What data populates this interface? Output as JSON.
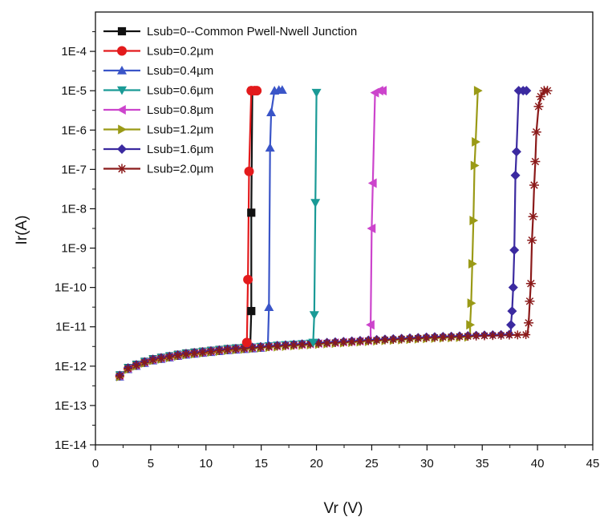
{
  "chart_data": {
    "type": "line",
    "title": "",
    "xlabel": "Vr (V)",
    "ylabel": "Ir(A)",
    "xlim": [
      0,
      45
    ],
    "x_ticks": [
      0,
      5,
      10,
      15,
      20,
      25,
      30,
      35,
      40,
      45
    ],
    "y_scale": "log",
    "ylim_exp": [
      -14,
      -3
    ],
    "y_ticks": [
      {
        "exp": -14,
        "label": "1E-14"
      },
      {
        "exp": -13,
        "label": "1E-13"
      },
      {
        "exp": -12,
        "label": "1E-12"
      },
      {
        "exp": -11,
        "label": "1E-11"
      },
      {
        "exp": -10,
        "label": "1E-10"
      },
      {
        "exp": -9,
        "label": "1E-9"
      },
      {
        "exp": -8,
        "label": "1E-8"
      },
      {
        "exp": -7,
        "label": "1E-7"
      },
      {
        "exp": -6,
        "label": "1E-6"
      },
      {
        "exp": -5,
        "label": "1E-5"
      },
      {
        "exp": -4,
        "label": "1E-4"
      }
    ],
    "legend_position": "top-left",
    "common_leakage_curve": [
      [
        2,
        -12.3
      ],
      [
        3,
        -12.05
      ],
      [
        5,
        -11.85
      ],
      [
        8,
        -11.7
      ],
      [
        12,
        -11.58
      ],
      [
        16,
        -11.5
      ],
      [
        20,
        -11.43
      ],
      [
        25,
        -11.35
      ],
      [
        30,
        -11.28
      ],
      [
        35,
        -11.23
      ],
      [
        39,
        -11.2
      ]
    ],
    "series": [
      {
        "name": "Lsub=0--Common Pwell-Nwell Junction",
        "color": "#111111",
        "marker": "square",
        "breakdown_v": 14.0,
        "points": [
          [
            14.1,
            -10.6
          ],
          [
            14.1,
            -8.1
          ],
          [
            14.2,
            -5.0
          ]
        ]
      },
      {
        "name": "Lsub=0.2µm",
        "color": "#e31a1c",
        "marker": "circle",
        "breakdown_v": 13.8,
        "points": [
          [
            13.7,
            -11.4
          ],
          [
            13.8,
            -9.8
          ],
          [
            13.9,
            -7.05
          ],
          [
            14.1,
            -5.0
          ],
          [
            14.4,
            -5.0
          ],
          [
            14.6,
            -5.0
          ]
        ]
      },
      {
        "name": "Lsub=0.4µm",
        "color": "#3a55c8",
        "marker": "triangle-up",
        "breakdown_v": 15.6,
        "points": [
          [
            15.7,
            -10.5
          ],
          [
            15.8,
            -6.45
          ],
          [
            15.9,
            -5.55
          ],
          [
            16.2,
            -5.0
          ],
          [
            16.6,
            -4.98
          ],
          [
            16.9,
            -4.98
          ]
        ]
      },
      {
        "name": "Lsub=0.6µm",
        "color": "#1a9a96",
        "marker": "triangle-down",
        "breakdown_v": 19.6,
        "points": [
          [
            19.7,
            -11.4
          ],
          [
            19.8,
            -10.7
          ],
          [
            19.9,
            -7.85
          ],
          [
            20.0,
            -5.05
          ]
        ]
      },
      {
        "name": "Lsub=0.8µm",
        "color": "#cc44cc",
        "marker": "triangle-left",
        "breakdown_v": 24.9,
        "points": [
          [
            24.9,
            -10.95
          ],
          [
            25.0,
            -8.5
          ],
          [
            25.1,
            -7.35
          ],
          [
            25.3,
            -5.05
          ],
          [
            25.7,
            -5.0
          ],
          [
            26.0,
            -5.0
          ]
        ]
      },
      {
        "name": "Lsub=1.2µm",
        "color": "#9a9a16",
        "marker": "triangle-right",
        "breakdown_v": 33.9,
        "points": [
          [
            33.9,
            -10.95
          ],
          [
            34.0,
            -10.4
          ],
          [
            34.1,
            -9.4
          ],
          [
            34.2,
            -8.3
          ],
          [
            34.3,
            -6.9
          ],
          [
            34.4,
            -6.3
          ],
          [
            34.6,
            -5.0
          ]
        ]
      },
      {
        "name": "Lsub=1.6µm",
        "color": "#3b2aa0",
        "marker": "diamond",
        "breakdown_v": 37.6,
        "points": [
          [
            37.6,
            -10.95
          ],
          [
            37.7,
            -10.6
          ],
          [
            37.8,
            -10.0
          ],
          [
            37.9,
            -9.05
          ],
          [
            38.0,
            -7.15
          ],
          [
            38.1,
            -6.55
          ],
          [
            38.3,
            -5.0
          ],
          [
            38.7,
            -5.0
          ],
          [
            39.0,
            -5.0
          ]
        ]
      },
      {
        "name": "Lsub=2.0µm",
        "color": "#8b1a1a",
        "marker": "asterisk",
        "breakdown_v": 39.1,
        "points": [
          [
            39.2,
            -10.9
          ],
          [
            39.3,
            -10.35
          ],
          [
            39.4,
            -9.9
          ],
          [
            39.5,
            -8.8
          ],
          [
            39.6,
            -8.2
          ],
          [
            39.7,
            -7.4
          ],
          [
            39.8,
            -6.8
          ],
          [
            39.9,
            -6.05
          ],
          [
            40.1,
            -5.4
          ],
          [
            40.3,
            -5.15
          ],
          [
            40.6,
            -5.0
          ],
          [
            40.9,
            -5.0
          ]
        ]
      }
    ]
  }
}
